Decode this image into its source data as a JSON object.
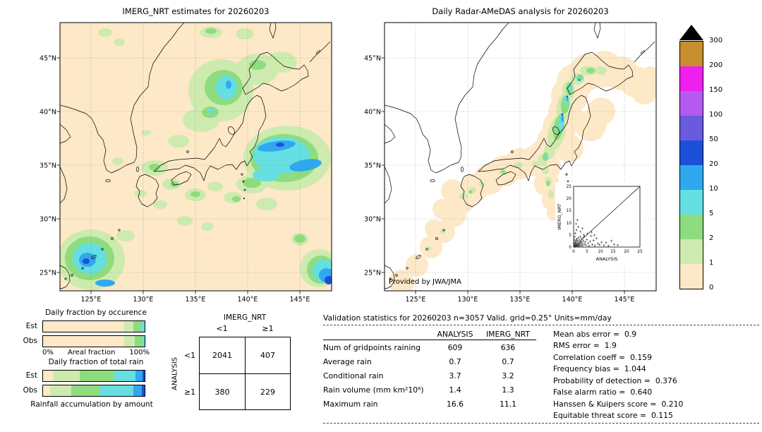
{
  "maps": {
    "left": {
      "title": "IMERG_NRT estimates for 20260203"
    },
    "right": {
      "title": "Daily Radar-AMeDAS analysis for 20260203",
      "credit": "Provided by JWA/JMA"
    },
    "lat_ticks": [
      "45°N",
      "40°N",
      "35°N",
      "30°N",
      "25°N"
    ],
    "lon_ticks": [
      "125°E",
      "130°E",
      "135°E",
      "140°E",
      "145°E"
    ]
  },
  "chart_data": [
    {
      "type": "heatmap",
      "name": "precipitation-colorbar",
      "units": "mm/day",
      "levels": [
        0,
        1,
        2,
        5,
        10,
        20,
        50,
        100,
        150,
        200,
        300
      ],
      "colors": [
        "#fde8c7",
        "#cdebae",
        "#8edc7e",
        "#66dfe2",
        "#2fa8f0",
        "#1c50d8",
        "#6a5ae0",
        "#b45af0",
        "#ef1ff0",
        "#c78f2e"
      ],
      "over_color": "#000000"
    },
    {
      "type": "bar",
      "name": "daily-fraction-by-occurrence",
      "title": "Daily fraction by occurence",
      "orientation": "horizontal_stacked",
      "categories": [
        "Est",
        "Obs"
      ],
      "xlabel": "Areal fraction",
      "x_min_label": "0%",
      "x_max_label": "100%",
      "series": [
        {
          "name": "0-1 mm/day",
          "color": "#fde8c7",
          "values": [
            80,
            80
          ]
        },
        {
          "name": "1-2 mm/day",
          "color": "#cdebae",
          "values": [
            9,
            10
          ]
        },
        {
          "name": "2-5 mm/day",
          "color": "#8edc7e",
          "values": [
            8,
            8
          ]
        },
        {
          "name": "5-10 mm/day",
          "color": "#66dfe2",
          "values": [
            3,
            2
          ]
        }
      ]
    },
    {
      "type": "bar",
      "name": "daily-fraction-of-total-rain",
      "title": "Daily fraction of total rain",
      "orientation": "horizontal_stacked",
      "categories": [
        "Est",
        "Obs"
      ],
      "footer": "Rainfall accumulation by amount",
      "series": [
        {
          "name": "0-1 mm/day",
          "color": "#fde8c7",
          "values": [
            10,
            7
          ]
        },
        {
          "name": "1-2 mm/day",
          "color": "#cdebae",
          "values": [
            26,
            21
          ]
        },
        {
          "name": "2-5 mm/day",
          "color": "#8edc7e",
          "values": [
            34,
            28
          ]
        },
        {
          "name": "5-10 mm/day",
          "color": "#66dfe2",
          "values": [
            21,
            33
          ]
        },
        {
          "name": "10-20 mm/day",
          "color": "#2fa8f0",
          "values": [
            7,
            8
          ]
        },
        {
          "name": "20-50 mm/day",
          "color": "#1c50d8",
          "values": [
            2,
            3
          ]
        }
      ]
    },
    {
      "type": "table",
      "name": "contingency-table",
      "col_group": "IMERG_NRT",
      "row_group": "ANALYSIS",
      "col_labels": [
        "<1",
        "≥1"
      ],
      "row_labels": [
        "<1",
        "≥1"
      ],
      "values": [
        [
          2041,
          407
        ],
        [
          380,
          229
        ]
      ]
    },
    {
      "type": "table",
      "name": "validation-statistics",
      "title": "Validation statistics for 20260203  n=3057 Valid. grid=0.25° Units=mm/day",
      "columns": [
        "ANALYSIS",
        "IMERG_NRT"
      ],
      "rows": [
        {
          "label": "Num of gridpoints raining",
          "analysis": "609",
          "imerg": "636"
        },
        {
          "label": "Average rain",
          "analysis": "0.7",
          "imerg": "0.7"
        },
        {
          "label": "Conditional rain",
          "analysis": "3.7",
          "imerg": "3.2"
        },
        {
          "label": "Rain volume (mm km²10⁶)",
          "analysis": "1.4",
          "imerg": "1.3"
        },
        {
          "label": "Maximum rain",
          "analysis": "16.6",
          "imerg": "11.1"
        }
      ],
      "scores": [
        {
          "label": "Mean abs error =",
          "value": "0.9"
        },
        {
          "label": "RMS error =",
          "value": "1.9"
        },
        {
          "label": "Correlation coeff =",
          "value": "0.159"
        },
        {
          "label": "Frequency bias =",
          "value": "1.044"
        },
        {
          "label": "Probability of detection =",
          "value": "0.376"
        },
        {
          "label": "False alarm ratio =",
          "value": "0.640"
        },
        {
          "label": "Hanssen & Kuipers score =",
          "value": "0.210"
        },
        {
          "label": "Equitable threat score =",
          "value": "0.115"
        }
      ]
    },
    {
      "type": "scatter",
      "name": "inset-scatter",
      "xlabel": "ANALYSIS",
      "ylabel": "IMERG_NRT",
      "xlim": [
        0,
        25
      ],
      "ylim": [
        0,
        25
      ],
      "xticks": [
        0,
        5,
        10,
        15,
        20,
        25
      ],
      "yticks": [
        0,
        5,
        10,
        15,
        20,
        25
      ],
      "diagonal": true,
      "points": [
        [
          0.2,
          0.3
        ],
        [
          0.3,
          0.8
        ],
        [
          0.4,
          0.2
        ],
        [
          0.5,
          1.2
        ],
        [
          0.5,
          0.4
        ],
        [
          0.6,
          2.1
        ],
        [
          0.7,
          0.6
        ],
        [
          0.8,
          1.5
        ],
        [
          0.8,
          0.3
        ],
        [
          0.9,
          2.8
        ],
        [
          1.0,
          0.7
        ],
        [
          1.0,
          1.9
        ],
        [
          1.1,
          0.4
        ],
        [
          1.2,
          3.3
        ],
        [
          1.3,
          1.1
        ],
        [
          1.4,
          0.6
        ],
        [
          1.5,
          2.4
        ],
        [
          1.6,
          1.0
        ],
        [
          1.7,
          0.3
        ],
        [
          1.8,
          3.8
        ],
        [
          1.9,
          1.6
        ],
        [
          2.0,
          0.8
        ],
        [
          2.1,
          2.9
        ],
        [
          2.2,
          1.3
        ],
        [
          2.4,
          0.5
        ],
        [
          2.5,
          4.3
        ],
        [
          2.6,
          1.9
        ],
        [
          2.8,
          0.9
        ],
        [
          3.0,
          3.4
        ],
        [
          3.2,
          1.5
        ],
        [
          3.4,
          0.6
        ],
        [
          3.6,
          2.6
        ],
        [
          3.8,
          5.0
        ],
        [
          4.0,
          1.2
        ],
        [
          4.3,
          2.1
        ],
        [
          4.6,
          0.8
        ],
        [
          5.0,
          3.0
        ],
        [
          5.4,
          1.6
        ],
        [
          5.8,
          0.5
        ],
        [
          6.2,
          2.3
        ],
        [
          6.6,
          4.6
        ],
        [
          7.0,
          1.0
        ],
        [
          7.5,
          2.8
        ],
        [
          8.0,
          0.6
        ],
        [
          8.6,
          3.6
        ],
        [
          9.2,
          1.4
        ],
        [
          9.8,
          0.9
        ],
        [
          10.5,
          2.0
        ],
        [
          11.4,
          0.7
        ],
        [
          12.2,
          1.8
        ],
        [
          13.1,
          0.5
        ],
        [
          14.2,
          2.6
        ],
        [
          15.3,
          1.1
        ],
        [
          16.6,
          0.8
        ],
        [
          0.4,
          4.2
        ],
        [
          0.6,
          5.6
        ],
        [
          1.1,
          7.0
        ],
        [
          1.8,
          8.3
        ],
        [
          0.9,
          9.6
        ],
        [
          1.4,
          11.1
        ],
        [
          2.6,
          6.4
        ],
        [
          3.3,
          7.7
        ],
        [
          0.2,
          1.6
        ],
        [
          0.3,
          2.9
        ],
        [
          5.2,
          5.5
        ],
        [
          6.8,
          6.1
        ],
        [
          4.1,
          4.4
        ],
        [
          2.9,
          2.2
        ],
        [
          3.7,
          3.9
        ],
        [
          7.8,
          4.9
        ]
      ]
    }
  ]
}
